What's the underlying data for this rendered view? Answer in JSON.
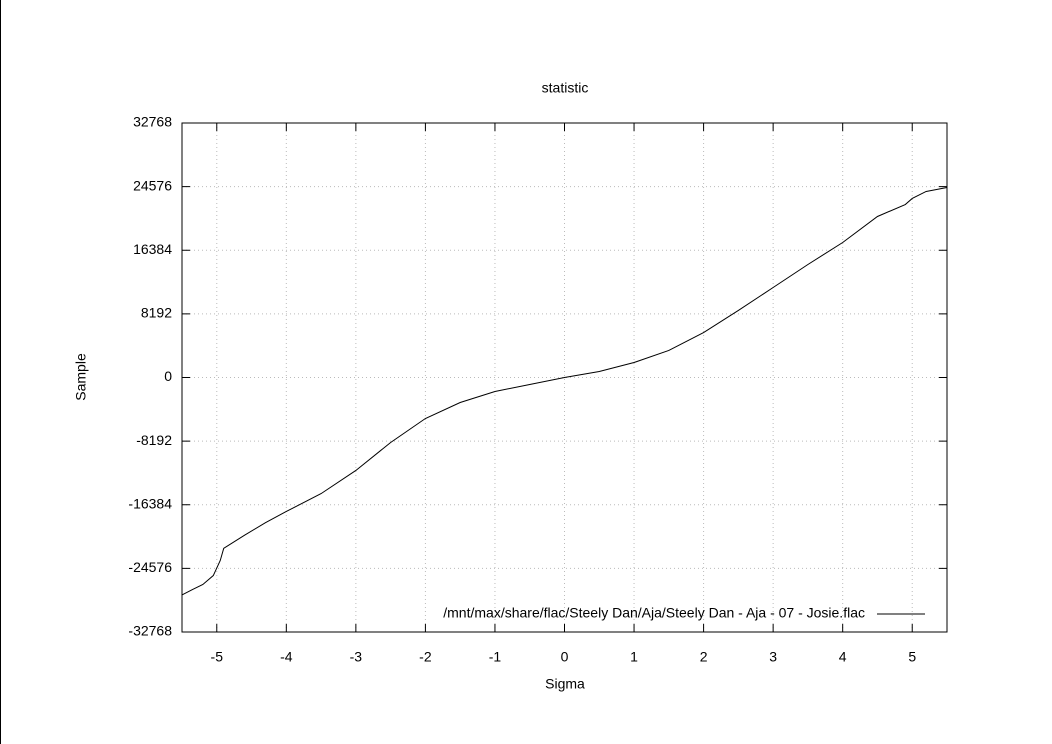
{
  "chart_data": {
    "type": "line",
    "title": "statistic",
    "x_label": "Sigma",
    "y_label": "Sample",
    "x": [
      -5.5,
      -5.35,
      -5.2,
      -5.05,
      -4.95,
      -4.9,
      -4.6,
      -4.3,
      -4.0,
      -3.5,
      -3.0,
      -2.5,
      -2.0,
      -1.5,
      -1.0,
      -0.5,
      0,
      0.5,
      1.0,
      1.5,
      2.0,
      2.5,
      3.0,
      3.5,
      4.0,
      4.5,
      4.9,
      5.0,
      5.2,
      5.5
    ],
    "series": [
      {
        "name": "/mnt/max/share/flac/Steely Dan/Aja/Steely Dan - Aja - 07 - Josie.flac",
        "color": "#000000",
        "values": [
          -28000,
          -27300,
          -26650,
          -25500,
          -23560,
          -22000,
          -20300,
          -18700,
          -17250,
          -14950,
          -11970,
          -8370,
          -5280,
          -3220,
          -1800,
          -900,
          0,
          770,
          1930,
          3480,
          5790,
          8630,
          11590,
          14550,
          17380,
          20730,
          22270,
          23050,
          23950,
          24460
        ]
      }
    ],
    "xlim": [
      -5.5,
      5.5
    ],
    "xticks": [
      -5,
      -4,
      -3,
      -2,
      -1,
      0,
      1,
      2,
      3,
      4,
      5
    ],
    "ylim": [
      -32768,
      32768
    ],
    "yticks": [
      -32768,
      -24576,
      -16384,
      -8192,
      0,
      8192,
      16384,
      24576,
      32768
    ],
    "grid": true,
    "legend": "bottom-right"
  }
}
